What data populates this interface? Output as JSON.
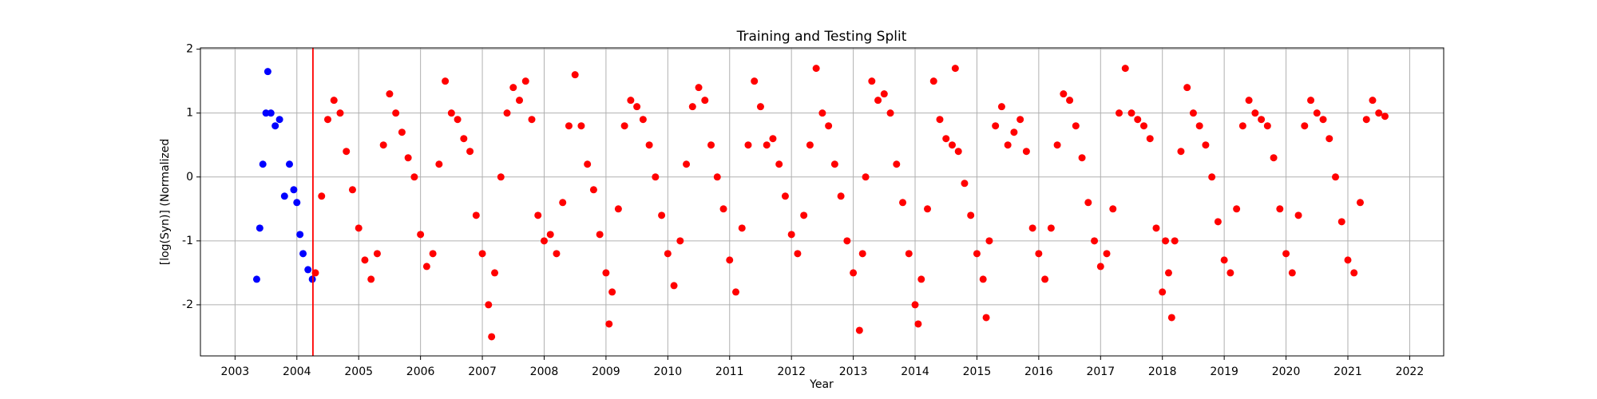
{
  "chart_data": {
    "type": "scatter",
    "title": "Training and Testing Split",
    "x_label": "Year",
    "y_label": "[log(Syn)] (Normalized",
    "xlim": [
      2002.44,
      2022.55
    ],
    "ylim": [
      -2.8,
      2.02
    ],
    "xticks": [
      2003,
      2004,
      2005,
      2006,
      2007,
      2008,
      2009,
      2010,
      2011,
      2012,
      2013,
      2014,
      2015,
      2016,
      2017,
      2018,
      2019,
      2020,
      2021,
      2022
    ],
    "yticks": [
      -2,
      -1,
      0,
      1,
      2
    ],
    "grid": true,
    "vline": {
      "x": 2004.26,
      "color": "red"
    },
    "series": [
      {
        "color": "blue",
        "x": [
          2003.35,
          2003.4,
          2003.45,
          2003.5,
          2003.53,
          2003.58,
          2003.65,
          2003.72,
          2003.8,
          2003.88,
          2003.95,
          2004.0,
          2004.05,
          2004.1,
          2004.18,
          2004.25
        ],
        "values": [
          -1.6,
          -0.8,
          0.2,
          1.0,
          1.65,
          1.0,
          0.8,
          0.9,
          -0.3,
          0.2,
          -0.2,
          -0.4,
          -0.9,
          -1.2,
          -1.45,
          -1.6
        ]
      },
      {
        "color": "red",
        "x": [
          2004.3,
          2004.4,
          2004.5,
          2004.6,
          2004.7,
          2004.8,
          2004.9,
          2005.0,
          2005.1,
          2005.2,
          2005.3,
          2005.4,
          2005.5,
          2005.6,
          2005.7,
          2005.8,
          2005.9,
          2006.0,
          2006.1,
          2006.2,
          2006.3,
          2006.4,
          2006.5,
          2006.6,
          2006.7,
          2006.8,
          2006.9,
          2007.0,
          2007.1,
          2007.15,
          2007.2,
          2007.3,
          2007.4,
          2007.5,
          2007.6,
          2007.7,
          2007.8,
          2007.9,
          2008.0,
          2008.1,
          2008.2,
          2008.3,
          2008.4,
          2008.5,
          2008.6,
          2008.7,
          2008.8,
          2008.9,
          2009.0,
          2009.05,
          2009.1,
          2009.2,
          2009.3,
          2009.4,
          2009.5,
          2009.6,
          2009.7,
          2009.8,
          2009.9,
          2010.0,
          2010.1,
          2010.2,
          2010.3,
          2010.4,
          2010.5,
          2010.6,
          2010.7,
          2010.8,
          2010.9,
          2011.0,
          2011.1,
          2011.2,
          2011.3,
          2011.4,
          2011.5,
          2011.6,
          2011.7,
          2011.8,
          2011.9,
          2012.0,
          2012.1,
          2012.2,
          2012.3,
          2012.4,
          2012.5,
          2012.6,
          2012.7,
          2012.8,
          2012.9,
          2013.0,
          2013.1,
          2013.15,
          2013.2,
          2013.3,
          2013.4,
          2013.5,
          2013.6,
          2013.7,
          2013.8,
          2013.9,
          2014.0,
          2014.05,
          2014.1,
          2014.2,
          2014.3,
          2014.4,
          2014.5,
          2014.6,
          2014.65,
          2014.7,
          2014.8,
          2014.9,
          2015.0,
          2015.1,
          2015.15,
          2015.2,
          2015.3,
          2015.4,
          2015.5,
          2015.6,
          2015.7,
          2015.8,
          2015.9,
          2016.0,
          2016.1,
          2016.2,
          2016.3,
          2016.4,
          2016.5,
          2016.6,
          2016.7,
          2016.8,
          2016.9,
          2017.0,
          2017.1,
          2017.2,
          2017.3,
          2017.4,
          2017.5,
          2017.6,
          2017.7,
          2017.8,
          2017.9,
          2018.0,
          2018.05,
          2018.1,
          2018.15,
          2018.2,
          2018.3,
          2018.4,
          2018.5,
          2018.6,
          2018.7,
          2018.8,
          2018.9,
          2019.0,
          2019.1,
          2019.2,
          2019.3,
          2019.4,
          2019.5,
          2019.6,
          2019.7,
          2019.8,
          2019.9,
          2020.0,
          2020.1,
          2020.2,
          2020.3,
          2020.4,
          2020.5,
          2020.6,
          2020.7,
          2020.8,
          2020.9,
          2021.0,
          2021.1,
          2021.2,
          2021.3,
          2021.4,
          2021.5,
          2021.6
        ],
        "values": [
          -1.5,
          -0.3,
          0.9,
          1.2,
          1.0,
          0.4,
          -0.2,
          -0.8,
          -1.3,
          -1.6,
          -1.2,
          0.5,
          1.3,
          1.0,
          0.7,
          0.3,
          0.0,
          -0.9,
          -1.4,
          -1.2,
          0.2,
          1.5,
          1.0,
          0.9,
          0.6,
          0.4,
          -0.6,
          -1.2,
          -2.0,
          -2.5,
          -1.5,
          0.0,
          1.0,
          1.4,
          1.2,
          1.5,
          0.9,
          -0.6,
          -1.0,
          -0.9,
          -1.2,
          -0.4,
          0.8,
          1.6,
          0.8,
          0.2,
          -0.2,
          -0.9,
          -1.5,
          -2.3,
          -1.8,
          -0.5,
          0.8,
          1.2,
          1.1,
          0.9,
          0.5,
          0.0,
          -0.6,
          -1.2,
          -1.7,
          -1.0,
          0.2,
          1.1,
          1.4,
          1.2,
          0.5,
          0.0,
          -0.5,
          -1.3,
          -1.8,
          -0.8,
          0.5,
          1.5,
          1.1,
          0.5,
          0.6,
          0.2,
          -0.3,
          -0.9,
          -1.2,
          -0.6,
          0.5,
          1.7,
          1.0,
          0.8,
          0.2,
          -0.3,
          -1.0,
          -1.5,
          -2.4,
          -1.2,
          0.0,
          1.5,
          1.2,
          1.3,
          1.0,
          0.2,
          -0.4,
          -1.2,
          -2.0,
          -2.3,
          -1.6,
          -0.5,
          1.5,
          0.9,
          0.6,
          0.5,
          1.7,
          0.4,
          -0.1,
          -0.6,
          -1.2,
          -1.6,
          -2.2,
          -1.0,
          0.8,
          1.1,
          0.5,
          0.7,
          0.9,
          0.4,
          -0.8,
          -1.2,
          -1.6,
          -0.8,
          0.5,
          1.3,
          1.2,
          0.8,
          0.3,
          -0.4,
          -1.0,
          -1.4,
          -1.2,
          -0.5,
          1.0,
          1.7,
          1.0,
          0.9,
          0.8,
          0.6,
          -0.8,
          -1.8,
          -1.0,
          -1.5,
          -2.2,
          -1.0,
          0.4,
          1.4,
          1.0,
          0.8,
          0.5,
          0.0,
          -0.7,
          -1.3,
          -1.5,
          -0.5,
          0.8,
          1.2,
          1.0,
          0.9,
          0.8,
          0.3,
          -0.5,
          -1.2,
          -1.5,
          -0.6,
          0.8,
          1.2,
          1.0,
          0.9,
          0.6,
          0.0,
          -0.7,
          -1.3,
          -1.5,
          -0.4,
          0.9,
          1.2,
          1.0,
          0.95
        ]
      }
    ]
  }
}
